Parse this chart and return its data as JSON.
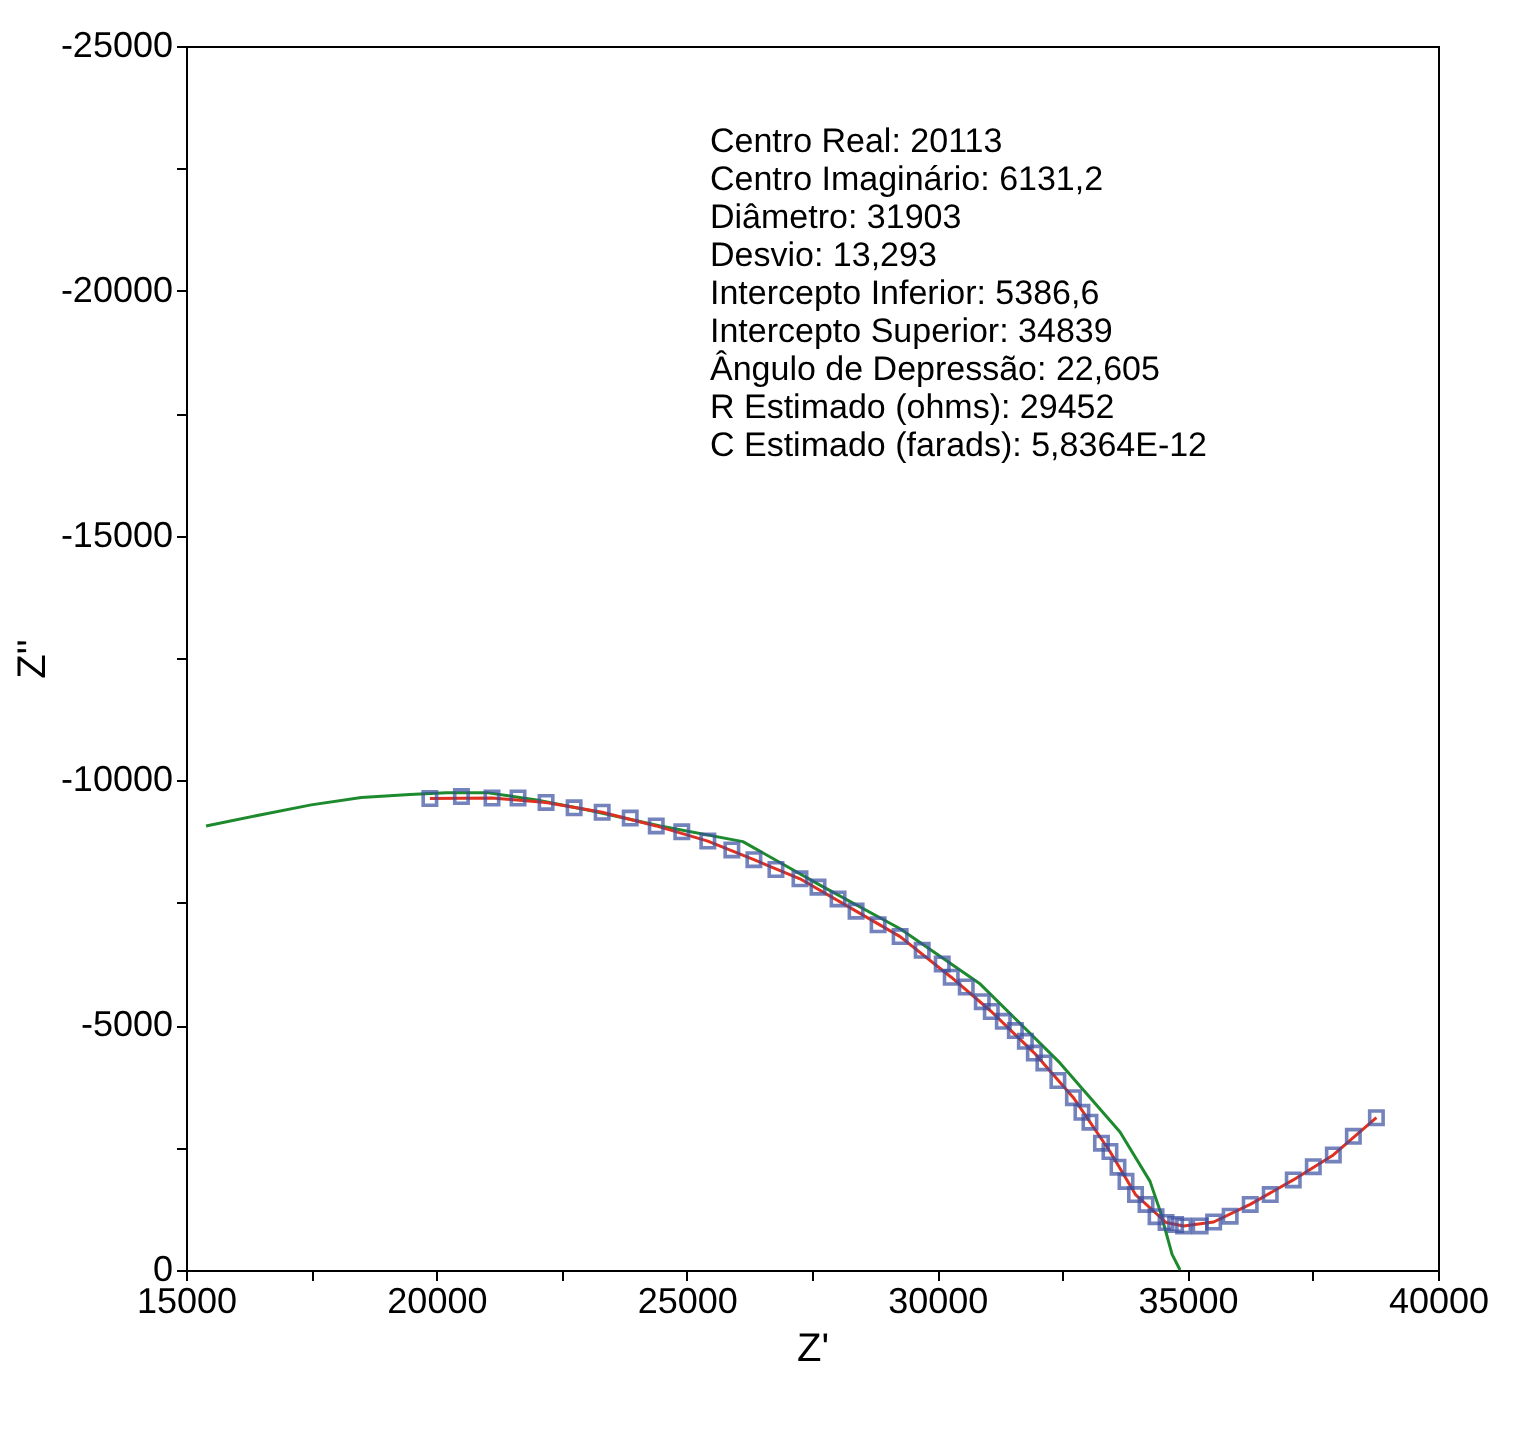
{
  "chart_data": {
    "type": "scatter",
    "xlabel": "Z'",
    "ylabel": "Z''",
    "xlim": [
      15000,
      40000
    ],
    "ylim": [
      0,
      -25000
    ],
    "xticks": [
      15000,
      {
        "value": 17500,
        "label": null
      },
      20000,
      {
        "value": 22500,
        "label": null
      },
      25000,
      {
        "value": 27500,
        "label": null
      },
      30000,
      {
        "value": 32500,
        "label": null
      },
      35000,
      {
        "value": 37500,
        "label": null
      },
      40000
    ],
    "yticks": [
      0,
      {
        "value": -2500,
        "label": null
      },
      -5000,
      {
        "value": -7500,
        "label": null
      },
      -10000,
      {
        "value": -12500,
        "label": null
      },
      -15000,
      {
        "value": -17500,
        "label": null
      },
      -20000,
      {
        "value": -22500,
        "label": null
      },
      -25000
    ],
    "grid": false,
    "series": [
      {
        "type": "line",
        "color": "#1e8a2e",
        "marker": "none",
        "line_style": "solid",
        "x": [
          15400,
          16500,
          17500,
          18500,
          19470,
          20200,
          21000,
          22000,
          23000,
          24470,
          26120,
          27660,
          29260,
          30860,
          32450,
          33650,
          34250,
          34450,
          34690,
          34850
        ],
        "values": [
          -9070,
          -9300,
          -9500,
          -9650,
          -9710,
          -9750,
          -9750,
          -9600,
          -9400,
          -9070,
          -8750,
          -7860,
          -6970,
          -5840,
          -4230,
          -2820,
          -1810,
          -1210,
          -320,
          0
        ]
      },
      {
        "type": "line",
        "color": "#e03020",
        "marker": "none",
        "line_style": "solid",
        "x": [
          19870,
          21110,
          22190,
          23310,
          24390,
          25420,
          26340,
          27260,
          28380,
          29260,
          30280,
          31080,
          31940,
          32720,
          33450,
          33960,
          34570,
          34920,
          35520,
          36250,
          37110,
          37910,
          38770
        ],
        "values": [
          -9630,
          -9640,
          -9550,
          -9350,
          -9070,
          -8760,
          -8380,
          -7990,
          -7330,
          -6810,
          -5980,
          -5280,
          -4430,
          -3520,
          -2420,
          -1540,
          -970,
          -900,
          -980,
          -1340,
          -1840,
          -2350,
          -3110
        ]
      },
      {
        "color": "#3a4fa0",
        "marker": "square",
        "x": [
          19870,
          20500,
          21110,
          21630,
          22190,
          22750,
          23310,
          23870,
          24390,
          24900,
          25420,
          25900,
          26340,
          26780,
          27260,
          27620,
          28020,
          28380,
          28820,
          29260,
          29700,
          30100,
          30280,
          30580,
          30900,
          31080,
          31320,
          31560,
          31760,
          31940,
          32130,
          32410,
          32720,
          32890,
          33050,
          33280,
          33450,
          33610,
          33770,
          33960,
          34170,
          34370,
          34570,
          34760,
          34920,
          35250,
          35520,
          35850,
          36250,
          36650,
          37110,
          37510,
          37910,
          38310,
          38770
        ],
        "values": [
          -9630,
          -9670,
          -9640,
          -9640,
          -9550,
          -9440,
          -9350,
          -9230,
          -9070,
          -8950,
          -8760,
          -8580,
          -8380,
          -8180,
          -7990,
          -7820,
          -7580,
          -7330,
          -7050,
          -6810,
          -6530,
          -6250,
          -5980,
          -5780,
          -5480,
          -5280,
          -5080,
          -4890,
          -4670,
          -4430,
          -4230,
          -3870,
          -3520,
          -3220,
          -3020,
          -2590,
          -2420,
          -2100,
          -1810,
          -1540,
          -1340,
          -1090,
          -970,
          -930,
          -900,
          -900,
          -980,
          -1100,
          -1340,
          -1540,
          -1840,
          -2110,
          -2350,
          -2730,
          -3110
        ]
      }
    ],
    "annotations": [
      "Centro Real: 20113",
      "Centro Imaginário: 6131,2",
      "Diâmetro: 31903",
      "Desvio: 13,293",
      "Intercepto Inferior: 5386,6",
      "Intercepto Superior: 34839",
      "Ângulo de Depressão: 22,605",
      "R Estimado (ohms): 29452",
      "C Estimado (farads): 5,8364E-12"
    ]
  }
}
